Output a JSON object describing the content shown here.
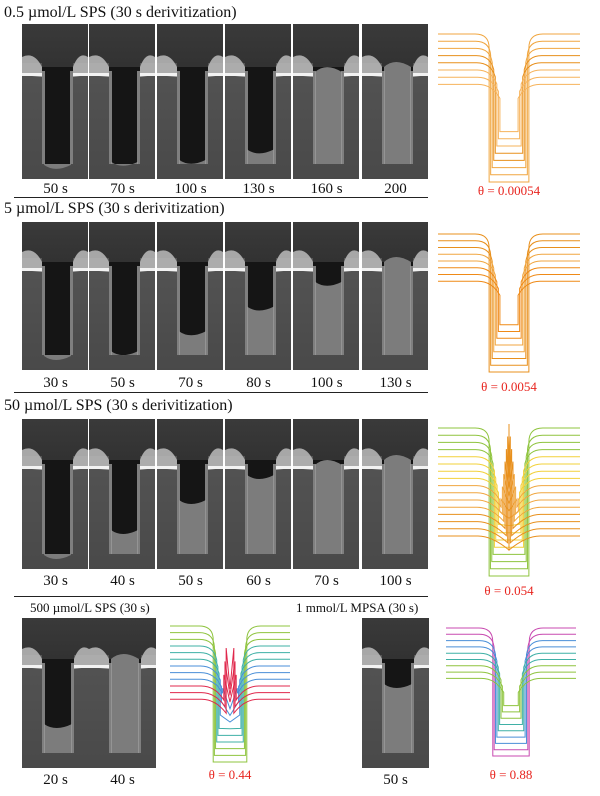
{
  "rows": [
    {
      "header": "0.5 µmol/L SPS (30 s derivitization)",
      "times": [
        "50 s",
        "70 s",
        "100 s",
        "130 s",
        "160 s",
        "200"
      ],
      "theta": "θ = 0.00054"
    },
    {
      "header": "5 µmol/L SPS (30 s derivitization)",
      "times": [
        "30 s",
        "50 s",
        "70 s",
        "80 s",
        "100 s",
        "130 s"
      ],
      "theta": "θ = 0.0054"
    },
    {
      "header": "50 µmol/L SPS (30 s derivitization)",
      "times": [
        "30 s",
        "40 s",
        "50 s",
        "60 s",
        "70 s",
        "100 s"
      ],
      "theta": "θ = 0.054"
    }
  ],
  "bottom": {
    "left_header": "500 µmol/L SPS (30 s)",
    "left_times": [
      "20 s",
      "40 s"
    ],
    "left_theta": "θ = 0.44",
    "right_header": "1 mmol/L MPSA (30 s)",
    "right_times": [
      "50 s"
    ],
    "right_theta": "θ = 0.88"
  },
  "colors": {
    "theta_text": "#e8251f",
    "sem_dark": "#2a2a2a",
    "sem_light": "#9a9a9a"
  }
}
